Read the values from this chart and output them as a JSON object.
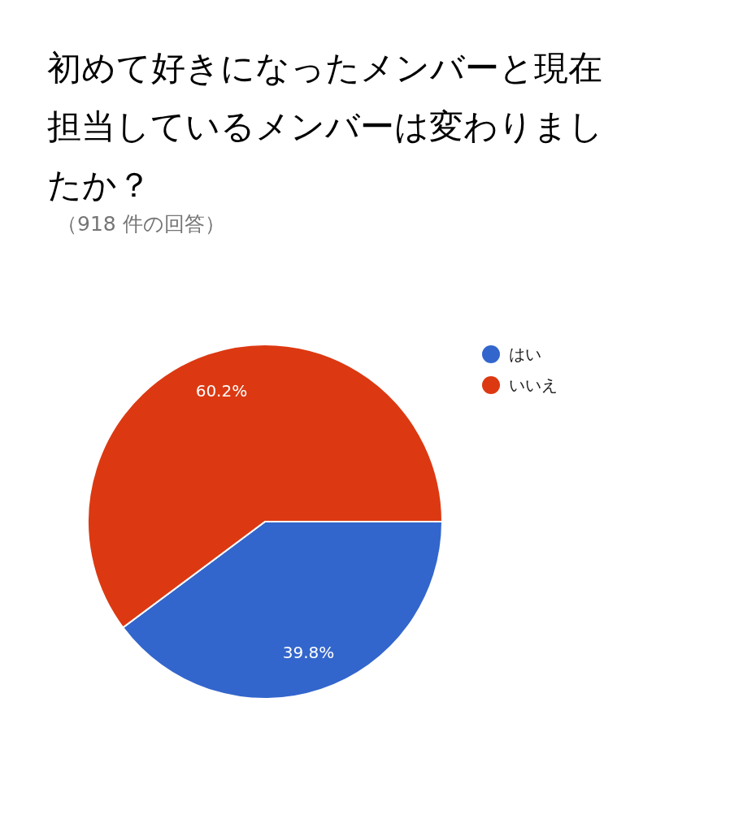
{
  "chart_data": {
    "type": "pie",
    "title": "初めて好きになったメンバーと現在担当しているメンバーは変わりましたか？",
    "subtitle": "（918 件の回答）",
    "categories": [
      "はい",
      "いいえ"
    ],
    "values": [
      39.8,
      60.2
    ],
    "colors": [
      "#3366cc",
      "#dc3912"
    ],
    "value_labels": [
      "39.8%",
      "60.2%"
    ],
    "legend": "right"
  }
}
